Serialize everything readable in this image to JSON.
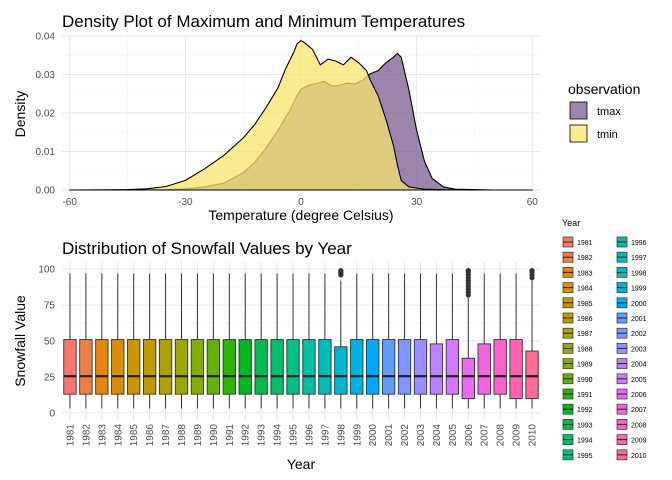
{
  "chart_data": [
    {
      "type": "area",
      "title": "Density Plot of Maximum and Minimum Temperatures",
      "xlabel": "Temperature (degree Celsius)",
      "ylabel": "Density",
      "xlim": [
        -62,
        62
      ],
      "ylim": [
        0,
        0.04
      ],
      "x_ticks": [
        -60,
        -30,
        0,
        30,
        60
      ],
      "y_ticks": [
        0.0,
        0.01,
        0.02,
        0.03,
        0.04
      ],
      "y_tick_labels": [
        "0.00",
        "0.01",
        "0.02",
        "0.03",
        "0.04"
      ],
      "grid": true,
      "legend": {
        "title": "observation",
        "position": "right"
      },
      "series": [
        {
          "name": "tmax",
          "color": "#7B5C8E",
          "x": [
            -60,
            -45,
            -35,
            -30,
            -25,
            -20,
            -15,
            -12,
            -9,
            -6,
            -3,
            -1,
            0,
            2,
            4,
            6,
            8,
            10,
            12,
            14,
            16,
            18,
            20,
            22,
            24,
            25,
            26,
            28,
            30,
            32,
            34,
            37,
            40,
            50,
            60
          ],
          "y": [
            0,
            0,
            0.0001,
            0.0003,
            0.0008,
            0.0018,
            0.0045,
            0.0072,
            0.011,
            0.0155,
            0.0205,
            0.0245,
            0.0262,
            0.0272,
            0.0277,
            0.0282,
            0.027,
            0.0272,
            0.0278,
            0.0275,
            0.0285,
            0.0302,
            0.031,
            0.033,
            0.0345,
            0.0355,
            0.0345,
            0.026,
            0.0155,
            0.0075,
            0.003,
            0.0008,
            0.0002,
            0,
            0
          ]
        },
        {
          "name": "tmin",
          "color": "#F5E46C",
          "x": [
            -60,
            -50,
            -45,
            -40,
            -35,
            -30,
            -25,
            -20,
            -15,
            -12,
            -9,
            -6,
            -4,
            -2,
            -1,
            0,
            1,
            3,
            5,
            7,
            9,
            11,
            13,
            15,
            17,
            18,
            20,
            22,
            24,
            25,
            26,
            28,
            32,
            38,
            45,
            60
          ],
          "y": [
            0,
            5e-05,
            0.0001,
            0.0003,
            0.0009,
            0.0025,
            0.0055,
            0.009,
            0.0135,
            0.017,
            0.0215,
            0.0265,
            0.0315,
            0.0355,
            0.038,
            0.0388,
            0.0382,
            0.0365,
            0.0325,
            0.034,
            0.0335,
            0.0325,
            0.0345,
            0.033,
            0.031,
            0.0285,
            0.0245,
            0.0185,
            0.0115,
            0.0065,
            0.0025,
            0.0008,
            0.0002,
            5e-05,
            0,
            0
          ]
        }
      ]
    },
    {
      "type": "box",
      "title": "Distribution of Snowfall Values by Year",
      "xlabel": "Year",
      "ylabel": "Snowfall Value",
      "ylim": [
        0,
        100
      ],
      "y_ticks": [
        0,
        25,
        50,
        75,
        100
      ],
      "grid": true,
      "legend": {
        "title": "Year",
        "position": "right"
      },
      "categories": [
        "1981",
        "1982",
        "1983",
        "1984",
        "1985",
        "1986",
        "1987",
        "1988",
        "1989",
        "1990",
        "1991",
        "1992",
        "1993",
        "1994",
        "1995",
        "1996",
        "1997",
        "1998",
        "1999",
        "2000",
        "2001",
        "2002",
        "2003",
        "2004",
        "2005",
        "2006",
        "2007",
        "2008",
        "2009",
        "2010"
      ],
      "colors": [
        "#F8766D",
        "#F07F46",
        "#E8850A",
        "#DB8E00",
        "#CD9600",
        "#BE9C00",
        "#AEA200",
        "#9AA800",
        "#84AD00",
        "#64B200",
        "#2AB600",
        "#00B81F",
        "#00BB4E",
        "#00BE6B",
        "#00C085",
        "#00C0A0",
        "#00BDBA",
        "#00B8D2",
        "#00B2E3",
        "#00A9FF",
        "#619CFF",
        "#7F96FF",
        "#9A8EFF",
        "#B983FF",
        "#D277FF",
        "#E76BF3",
        "#F265E0",
        "#FA62C9",
        "#FF62B0",
        "#FF6A96"
      ],
      "stats": [
        {
          "q1": 13,
          "median": 25.5,
          "q3": 51,
          "min": 3,
          "max": 97
        },
        {
          "q1": 13,
          "median": 25.5,
          "q3": 51,
          "min": 3,
          "max": 97
        },
        {
          "q1": 13,
          "median": 25.5,
          "q3": 51,
          "min": 3,
          "max": 97
        },
        {
          "q1": 13,
          "median": 25.5,
          "q3": 51,
          "min": 3,
          "max": 97
        },
        {
          "q1": 13,
          "median": 25.5,
          "q3": 51,
          "min": 3,
          "max": 97
        },
        {
          "q1": 13,
          "median": 25.5,
          "q3": 51,
          "min": 3,
          "max": 97
        },
        {
          "q1": 13,
          "median": 25.5,
          "q3": 51,
          "min": 3,
          "max": 97
        },
        {
          "q1": 13,
          "median": 25.5,
          "q3": 51,
          "min": 3,
          "max": 97
        },
        {
          "q1": 13,
          "median": 25.5,
          "q3": 51,
          "min": 3,
          "max": 97
        },
        {
          "q1": 13,
          "median": 25.5,
          "q3": 51,
          "min": 3,
          "max": 97
        },
        {
          "q1": 13,
          "median": 25.5,
          "q3": 51,
          "min": 3,
          "max": 97
        },
        {
          "q1": 13,
          "median": 25.5,
          "q3": 51,
          "min": 3,
          "max": 97
        },
        {
          "q1": 13,
          "median": 25.5,
          "q3": 51,
          "min": 3,
          "max": 97
        },
        {
          "q1": 13,
          "median": 25.5,
          "q3": 51,
          "min": 3,
          "max": 97
        },
        {
          "q1": 13,
          "median": 25.5,
          "q3": 51,
          "min": 3,
          "max": 97
        },
        {
          "q1": 13,
          "median": 25.5,
          "q3": 51,
          "min": 3,
          "max": 97
        },
        {
          "q1": 13,
          "median": 25.5,
          "q3": 51,
          "min": 3,
          "max": 97
        },
        {
          "q1": 13,
          "median": 25.5,
          "q3": 46,
          "min": 3,
          "max": 92,
          "outliers": [
            96,
            97,
            98,
            99
          ]
        },
        {
          "q1": 13,
          "median": 25.5,
          "q3": 51,
          "min": 3,
          "max": 97
        },
        {
          "q1": 13,
          "median": 25.5,
          "q3": 51,
          "min": 3,
          "max": 97
        },
        {
          "q1": 13,
          "median": 25.5,
          "q3": 51,
          "min": 3,
          "max": 97
        },
        {
          "q1": 13,
          "median": 25.5,
          "q3": 51,
          "min": 3,
          "max": 97
        },
        {
          "q1": 13,
          "median": 25.5,
          "q3": 51,
          "min": 3,
          "max": 97
        },
        {
          "q1": 13,
          "median": 25.5,
          "q3": 48,
          "min": 3,
          "max": 97
        },
        {
          "q1": 13,
          "median": 25.5,
          "q3": 51,
          "min": 3,
          "max": 97
        },
        {
          "q1": 10,
          "median": 25.5,
          "q3": 38,
          "min": 3,
          "max": 80,
          "outliers": [
            82,
            84,
            86,
            88,
            90,
            92,
            94,
            96,
            98,
            99
          ]
        },
        {
          "q1": 13,
          "median": 25.5,
          "q3": 48,
          "min": 3,
          "max": 97
        },
        {
          "q1": 13,
          "median": 25.5,
          "q3": 51,
          "min": 3,
          "max": 97
        },
        {
          "q1": 10,
          "median": 25.5,
          "q3": 51,
          "min": 3,
          "max": 97
        },
        {
          "q1": 10,
          "median": 25.5,
          "q3": 43,
          "min": 3,
          "max": 92,
          "outliers": [
            94,
            96,
            98,
            99
          ]
        }
      ]
    }
  ]
}
